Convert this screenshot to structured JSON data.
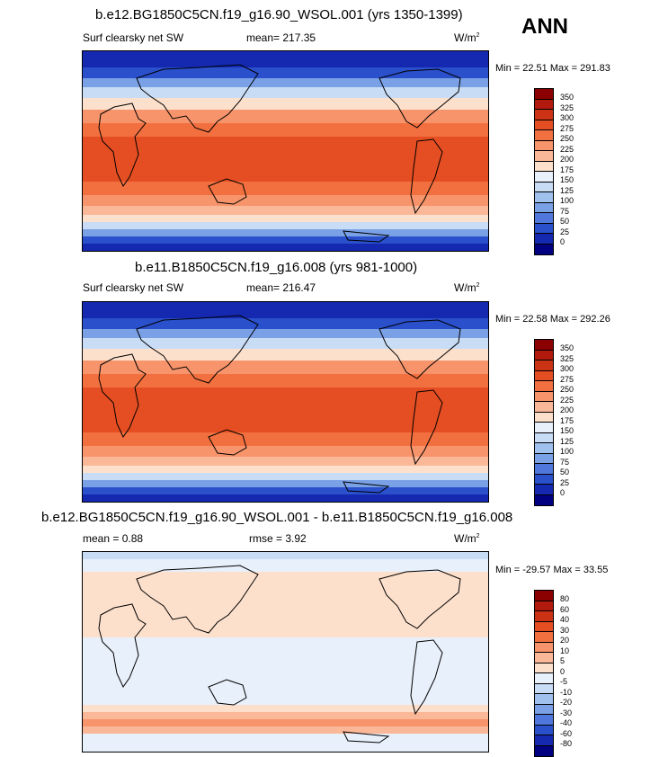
{
  "season": "ANN",
  "panels": [
    {
      "title": "b.e12.BG1850C5CN.f19_g16.90_WSOL.001 (yrs 1350-1399)",
      "left_label": "Surf clearsky net SW",
      "mean_label": "mean= 217.35",
      "units": "W/m",
      "units_sup": "2",
      "minmax": "Min =  22.51 Max = 291.83",
      "levels": [
        "350",
        "325",
        "300",
        "275",
        "250",
        "225",
        "200",
        "175",
        "150",
        "125",
        "100",
        "75",
        "50",
        "25",
        "0"
      ],
      "colors": [
        "#8b0000",
        "#b21a0d",
        "#cc3214",
        "#e54e22",
        "#f2703f",
        "#f7946b",
        "#fbb899",
        "#fde0cc",
        "#e8f0fb",
        "#c8dcf5",
        "#a0c0ee",
        "#7aa0e6",
        "#5078dc",
        "#2a50cc",
        "#1428b0",
        "#000080"
      ]
    },
    {
      "title": "b.e11.B1850C5CN.f19_g16.008 (yrs 981-1000)",
      "left_label": "Surf clearsky net SW",
      "mean_label": "mean= 216.47",
      "units": "W/m",
      "units_sup": "2",
      "minmax": "Min =  22.58 Max = 292.26",
      "levels": [
        "350",
        "325",
        "300",
        "275",
        "250",
        "225",
        "200",
        "175",
        "150",
        "125",
        "100",
        "75",
        "50",
        "25",
        "0"
      ],
      "colors": [
        "#8b0000",
        "#b21a0d",
        "#cc3214",
        "#e54e22",
        "#f2703f",
        "#f7946b",
        "#fbb899",
        "#fde0cc",
        "#e8f0fb",
        "#c8dcf5",
        "#a0c0ee",
        "#7aa0e6",
        "#5078dc",
        "#2a50cc",
        "#1428b0",
        "#000080"
      ]
    },
    {
      "title": "b.e12.BG1850C5CN.f19_g16.90_WSOL.001 - b.e11.B1850C5CN.f19_g16.008",
      "left_label": "mean =   0.88",
      "mean_label": "rmse =   3.92",
      "units": "W/m",
      "units_sup": "2",
      "minmax": "Min = -29.57 Max =  33.55",
      "levels": [
        "80",
        "60",
        "40",
        "30",
        "20",
        "10",
        "5",
        "0",
        "-5",
        "-10",
        "-20",
        "-30",
        "-40",
        "-60",
        "-80"
      ],
      "colors": [
        "#8b0000",
        "#b21a0d",
        "#cc3214",
        "#e54e22",
        "#f2703f",
        "#f7946b",
        "#fbb899",
        "#fde0cc",
        "#e8f0fb",
        "#c8dcf5",
        "#a0c0ee",
        "#7aa0e6",
        "#5078dc",
        "#2a50cc",
        "#1428b0",
        "#000080"
      ]
    }
  ]
}
